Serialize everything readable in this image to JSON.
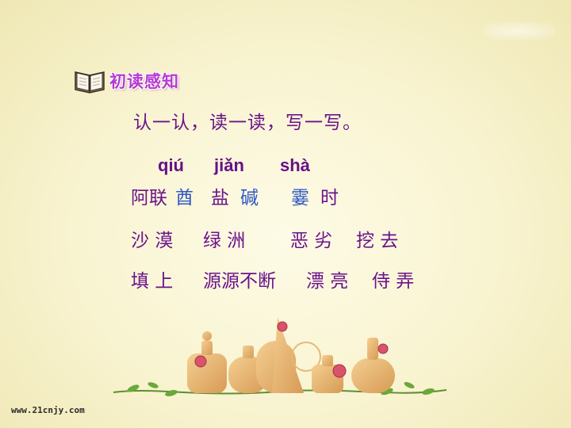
{
  "header": {
    "section_title": "初读感知",
    "icon": "open-book-icon"
  },
  "instruction": "认一认，读一读，写一写。",
  "pinyin": [
    "qiú",
    "jiǎn",
    "shà"
  ],
  "rows": [
    {
      "words": [
        "阿联",
        "酋",
        "盐",
        "碱",
        "霎",
        "时"
      ]
    },
    {
      "words": [
        "沙 漠",
        "绿 洲",
        "恶 劣",
        "挖 去"
      ]
    },
    {
      "words": [
        "填 上",
        "源源不断",
        "漂 亮",
        "侍 弄"
      ]
    }
  ],
  "colors": {
    "text_purple": "#6b138c",
    "highlight_blue": "#2f56c4",
    "title_purple": "#b63ad1"
  },
  "footer": {
    "url": "www.21cnjy.com"
  },
  "decoration": {
    "icon": "perfume-bottles-with-roses-icon"
  }
}
